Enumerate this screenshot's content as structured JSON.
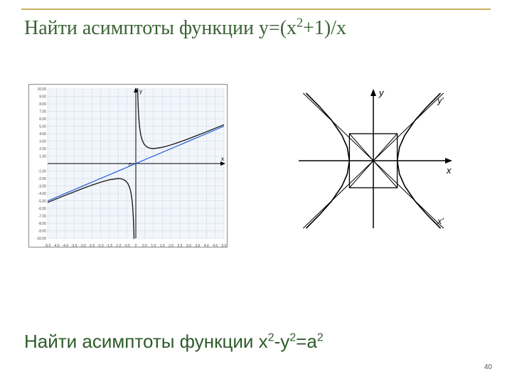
{
  "title": {
    "prefix": "Найти асимптоты функции y=(x",
    "sup1": "2",
    "suffix": "+1)/x",
    "color": "#3a6335",
    "fontsize": 28
  },
  "bottom_title": {
    "prefix": "Найти асимптоты функции x",
    "sup1": "2",
    "mid": "-y",
    "sup2": "2",
    "tail": "=a",
    "sup3": "2",
    "color": "#2d5c2a",
    "fontsize": 26
  },
  "page_number": "40",
  "title_line_color": "#c9b060",
  "left_chart": {
    "type": "line",
    "background_color": "#f2f6fb",
    "grid_color": "#c8d4e4",
    "axis_color": "#000000",
    "xlim": [
      -5,
      5
    ],
    "ylim": [
      -10,
      10
    ],
    "xtick_step": 0.5,
    "ytick_step": 1,
    "xtick_label_step": 0.5,
    "ytick_label_step": 1,
    "tick_label_fontsize": 5,
    "x_labels": [
      "-5.0",
      "-4.5",
      "-4.0",
      "-3.5",
      "-3.0",
      "-2.5",
      "-2.0",
      "-1.5",
      "-1.0",
      "-0.5",
      "0",
      "0.5",
      "1.0",
      "1.5",
      "2.0",
      "2.5",
      "3.0",
      "3.5",
      "4.0",
      "4.5",
      "5.0"
    ],
    "y_labels": [
      "-10.00",
      "-9.00",
      "-8.00",
      "-7.00",
      "-6.00",
      "-5.00",
      "-4.00",
      "-3.00",
      "-2.00",
      "-1.00",
      "",
      "1.00",
      "2.00",
      "3.00",
      "4.00",
      "5.00",
      "6.00",
      "7.00",
      "8.00",
      "9.00",
      "10.00"
    ],
    "y_axis_label": "y",
    "x_axis_label": "x",
    "zero_label": "0",
    "series": [
      {
        "name": "asymptote",
        "color": "#1f5bd6",
        "width": 1.2,
        "points": [
          [
            -5,
            -5
          ],
          [
            5,
            5
          ]
        ]
      },
      {
        "name": "curve_left",
        "color": "#202020",
        "width": 1.4,
        "points": [
          [
            -5,
            -5.2
          ],
          [
            -4,
            -4.25
          ],
          [
            -3,
            -3.33
          ],
          [
            -2.5,
            -2.9
          ],
          [
            -2,
            -2.5
          ],
          [
            -1.5,
            -2.17
          ],
          [
            -1,
            -2
          ],
          [
            -0.8,
            -2.05
          ],
          [
            -0.6,
            -2.27
          ],
          [
            -0.45,
            -2.67
          ],
          [
            -0.35,
            -3.21
          ],
          [
            -0.28,
            -3.85
          ],
          [
            -0.22,
            -4.77
          ],
          [
            -0.18,
            -5.74
          ],
          [
            -0.14,
            -7.28
          ],
          [
            -0.11,
            -9.2
          ],
          [
            -0.1,
            -10.1
          ]
        ]
      },
      {
        "name": "curve_right",
        "color": "#202020",
        "width": 1.4,
        "points": [
          [
            0.1,
            10.1
          ],
          [
            0.11,
            9.2
          ],
          [
            0.14,
            7.28
          ],
          [
            0.18,
            5.74
          ],
          [
            0.22,
            4.77
          ],
          [
            0.28,
            3.85
          ],
          [
            0.35,
            3.21
          ],
          [
            0.45,
            2.67
          ],
          [
            0.6,
            2.27
          ],
          [
            0.8,
            2.05
          ],
          [
            1,
            2
          ],
          [
            1.5,
            2.17
          ],
          [
            2,
            2.5
          ],
          [
            2.5,
            2.9
          ],
          [
            3,
            3.33
          ],
          [
            4,
            4.25
          ],
          [
            5,
            5.2
          ]
        ]
      }
    ]
  },
  "right_chart": {
    "type": "diagram",
    "axis_color": "#000000",
    "curve_color": "#000000",
    "y_label": "y",
    "x_label": "x",
    "yprime_label": "y'",
    "xprime_label": "x'",
    "xlim": [
      -5,
      5
    ],
    "ylim": [
      -4,
      4
    ],
    "square_half": 1.6,
    "curves": [
      {
        "points": [
          [
            1.6,
            0
          ],
          [
            1.75,
            0.8
          ],
          [
            2.1,
            1.5
          ],
          [
            2.8,
            2.4
          ],
          [
            3.6,
            3.2
          ],
          [
            4.5,
            4.0
          ]
        ]
      },
      {
        "points": [
          [
            1.6,
            0
          ],
          [
            1.75,
            -0.8
          ],
          [
            2.1,
            -1.5
          ],
          [
            2.8,
            -2.4
          ],
          [
            3.6,
            -3.2
          ],
          [
            4.5,
            -4.0
          ]
        ]
      },
      {
        "points": [
          [
            -1.6,
            0
          ],
          [
            -1.75,
            0.8
          ],
          [
            -2.1,
            1.5
          ],
          [
            -2.8,
            2.4
          ],
          [
            -3.6,
            3.2
          ],
          [
            -4.5,
            4.0
          ]
        ]
      },
      {
        "points": [
          [
            -1.6,
            0
          ],
          [
            -1.75,
            -0.8
          ],
          [
            -2.1,
            -1.5
          ],
          [
            -2.8,
            -2.4
          ],
          [
            -3.6,
            -3.2
          ],
          [
            -4.5,
            -4.0
          ]
        ]
      }
    ],
    "asymptotes": [
      {
        "points": [
          [
            -4.7,
            -4.0
          ],
          [
            4.7,
            4.0
          ]
        ]
      },
      {
        "points": [
          [
            -4.7,
            4.0
          ],
          [
            4.7,
            -4.0
          ]
        ]
      }
    ]
  }
}
